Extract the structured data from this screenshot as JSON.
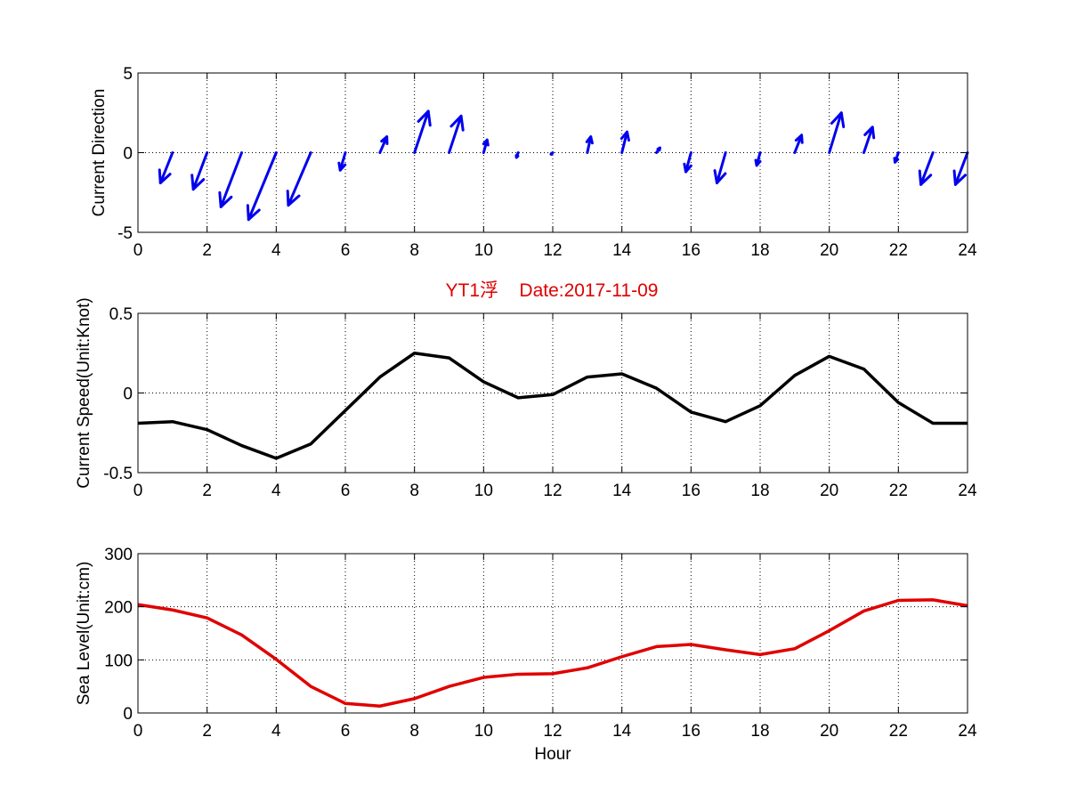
{
  "figure": {
    "title": "YT1浮    Date:2017-11-09",
    "title_color": "#e00000"
  },
  "chart_data": [
    {
      "type": "quiver",
      "ylabel": "Current Direction",
      "xlabel": "",
      "xlim": [
        0,
        24
      ],
      "ylim": [
        -5,
        5
      ],
      "xticks": [
        "0",
        "2",
        "4",
        "6",
        "8",
        "10",
        "12",
        "14",
        "16",
        "18",
        "20",
        "22",
        "24"
      ],
      "yticks": [
        "-5",
        "0",
        "5"
      ],
      "grid": true,
      "color": "#0000ee",
      "x": [
        1,
        2,
        3,
        4,
        5,
        6,
        7,
        8,
        9,
        10,
        11,
        12,
        13,
        14,
        15,
        16,
        17,
        18,
        19,
        20,
        21,
        22,
        23,
        24
      ],
      "u": [
        -0.35,
        -0.4,
        -0.6,
        -0.8,
        -0.65,
        -0.15,
        0.2,
        0.4,
        0.35,
        0.1,
        -0.05,
        -0.05,
        0.1,
        0.15,
        0.1,
        -0.15,
        -0.25,
        -0.1,
        0.2,
        0.35,
        0.25,
        -0.1,
        -0.35,
        -0.35
      ],
      "v": [
        -1.9,
        -2.3,
        -3.4,
        -4.2,
        -3.3,
        -1.1,
        1.0,
        2.6,
        2.3,
        0.8,
        -0.3,
        -0.1,
        1.0,
        1.3,
        0.3,
        -1.2,
        -1.9,
        -0.8,
        1.1,
        2.5,
        1.6,
        -0.6,
        -2.0,
        -2.0
      ],
      "y": [
        0,
        0,
        0,
        0,
        0,
        0,
        0,
        0,
        0,
        0,
        0,
        0,
        0,
        0,
        0,
        0,
        0,
        0,
        0,
        0,
        0,
        0,
        0,
        0
      ]
    },
    {
      "type": "line",
      "ylabel": "Current Speed(Unit:Knot)",
      "xlabel": "",
      "xlim": [
        0,
        24
      ],
      "ylim": [
        -0.5,
        0.5
      ],
      "xticks": [
        "0",
        "2",
        "4",
        "6",
        "8",
        "10",
        "12",
        "14",
        "16",
        "18",
        "20",
        "22",
        "24"
      ],
      "yticks": [
        "-0.5",
        "0",
        "0.5"
      ],
      "grid": true,
      "series": [
        {
          "color": "#000000",
          "x": [
            0,
            1,
            2,
            3,
            4,
            5,
            6,
            7,
            8,
            9,
            10,
            11,
            12,
            13,
            14,
            15,
            16,
            17,
            18,
            19,
            20,
            21,
            22,
            23,
            24
          ],
          "y": [
            -0.19,
            -0.18,
            -0.23,
            -0.33,
            -0.41,
            -0.32,
            -0.11,
            0.1,
            0.25,
            0.22,
            0.07,
            -0.03,
            -0.01,
            0.1,
            0.12,
            0.03,
            -0.12,
            -0.18,
            -0.08,
            0.11,
            0.23,
            0.15,
            -0.06,
            -0.19,
            -0.19
          ]
        }
      ]
    },
    {
      "type": "line",
      "ylabel": "Sea Level(Unit:cm)",
      "xlabel": "Hour",
      "xlim": [
        0,
        24
      ],
      "ylim": [
        0,
        300
      ],
      "xticks": [
        "0",
        "2",
        "4",
        "6",
        "8",
        "10",
        "12",
        "14",
        "16",
        "18",
        "20",
        "22",
        "24"
      ],
      "yticks": [
        "0",
        "100",
        "200",
        "300"
      ],
      "grid": true,
      "series": [
        {
          "color": "#e00000",
          "x": [
            0,
            1,
            2,
            3,
            4,
            5,
            6,
            7,
            8,
            9,
            10,
            11,
            12,
            13,
            14,
            15,
            16,
            17,
            18,
            19,
            20,
            21,
            22,
            23,
            24
          ],
          "y": [
            204,
            194,
            179,
            147,
            101,
            50,
            18,
            13,
            27,
            50,
            67,
            73,
            74,
            85,
            106,
            125,
            129,
            119,
            110,
            121,
            155,
            192,
            212,
            213,
            202
          ]
        }
      ]
    }
  ]
}
